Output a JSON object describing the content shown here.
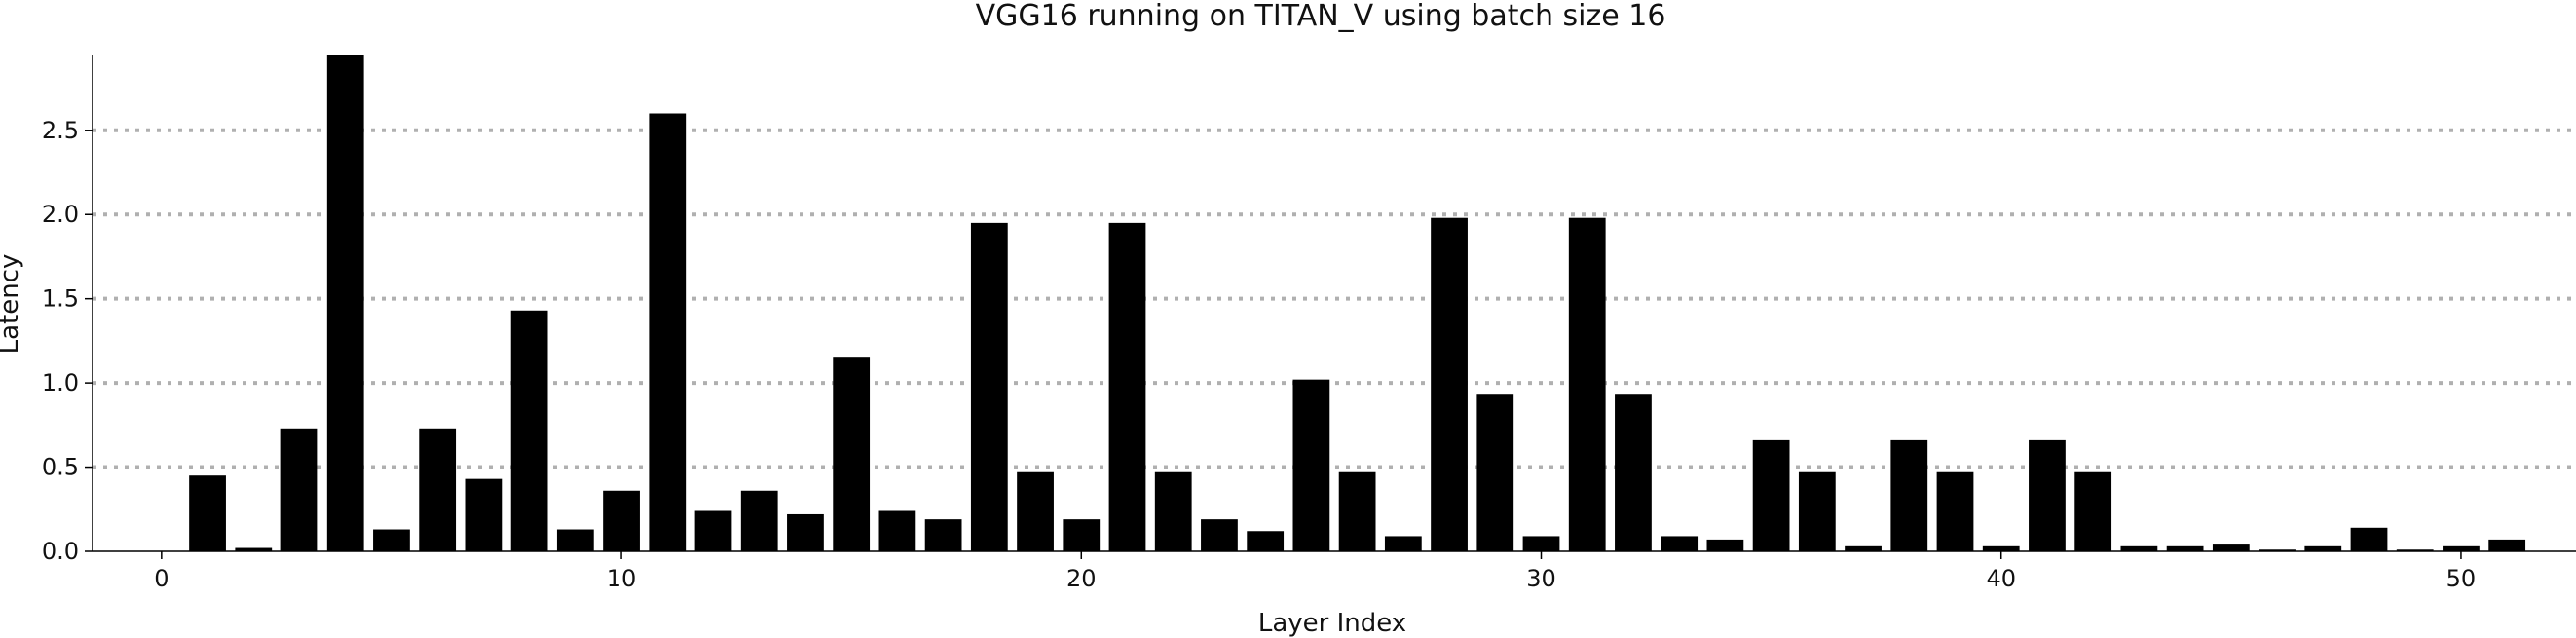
{
  "chart_data": {
    "type": "bar",
    "title": "VGG16 running on TITAN_V using batch size 16",
    "xlabel": "Layer Index",
    "ylabel": "Latency",
    "x": [
      0,
      1,
      2,
      3,
      4,
      5,
      6,
      7,
      8,
      9,
      10,
      11,
      12,
      13,
      14,
      15,
      16,
      17,
      18,
      19,
      20,
      21,
      22,
      23,
      24,
      25,
      26,
      27,
      28,
      29,
      30,
      31,
      32,
      33,
      34,
      35,
      36,
      37,
      38,
      39,
      40,
      41,
      42,
      43,
      44,
      45,
      46,
      47,
      48,
      49,
      50,
      51
    ],
    "values": [
      0,
      0.45,
      0.02,
      0.73,
      2.95,
      0.13,
      0.73,
      0.43,
      1.43,
      0.13,
      0.36,
      2.6,
      0.24,
      0.36,
      0.22,
      1.15,
      0.24,
      0.19,
      1.95,
      0.47,
      0.19,
      1.95,
      0.47,
      0.19,
      0.12,
      1.02,
      0.47,
      0.09,
      1.98,
      0.93,
      0.09,
      1.98,
      0.93,
      0.09,
      0.07,
      0.66,
      0.47,
      0.03,
      0.66,
      0.47,
      0.03,
      0.66,
      0.47,
      0.03,
      0.03,
      0.04,
      0.01,
      0.03,
      0.14,
      0.01,
      0.03,
      0.07
    ],
    "xlim": [
      -1.5,
      52.5
    ],
    "ylim": [
      0,
      2.95
    ],
    "xticks": [
      0,
      10,
      20,
      30,
      40,
      50
    ],
    "yticks": [
      0.0,
      0.5,
      1.0,
      1.5,
      2.0,
      2.5
    ],
    "ytick_labels": [
      "0.0",
      "0.5",
      "1.0",
      "1.5",
      "2.0",
      "2.5"
    ],
    "grid": "horizontal dotted",
    "bar_color": "#000000",
    "grid_color": "#b0b0b0"
  }
}
